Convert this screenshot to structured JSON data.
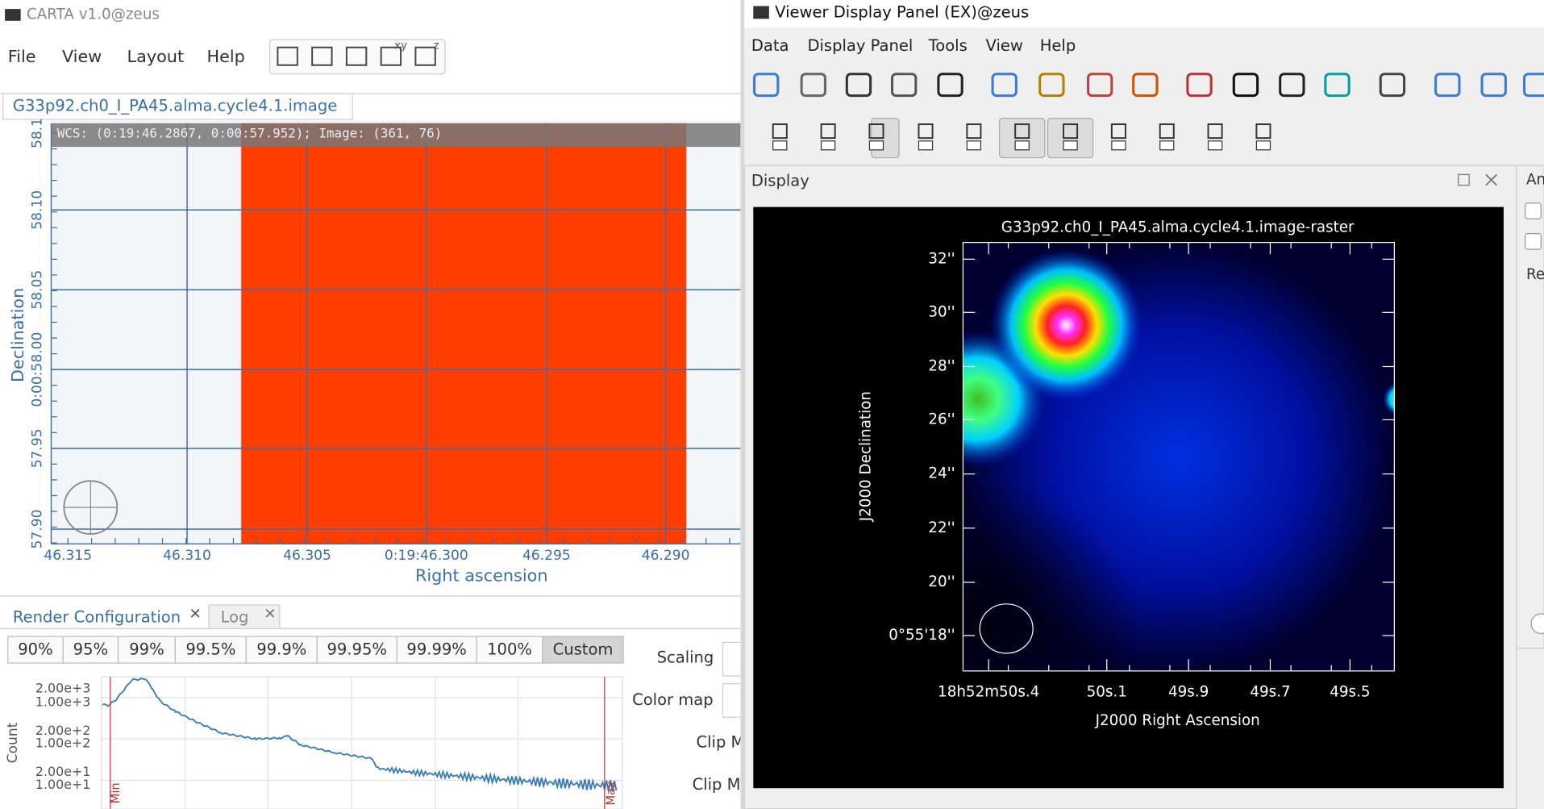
{
  "left_window": {
    "title": "CARTA v1.0@zeus",
    "menu": [
      "File",
      "View",
      "Layout",
      "Help"
    ],
    "toolbar_labels": [
      "xy",
      "z"
    ],
    "tab": "G33p92.ch0_I_PA45.alma.cycle4.1.image",
    "status": "WCS: (0:19:46.2867, 0:00:57.952); Image: (361, 76)",
    "plot": {
      "y_label": "Declination",
      "x_label": "Right ascension",
      "y_ticks": [
        "58.1",
        "58.10",
        "58.05",
        "0:00:58.00",
        "57.95",
        "57.90"
      ],
      "x_ticks": [
        "46.315",
        "46.310",
        "46.305",
        "0:19:46.300",
        "46.295",
        "46.290"
      ]
    }
  },
  "render_panel": {
    "tabs": [
      "Render Configuration",
      "Log"
    ],
    "percentiles": [
      "90%",
      "95%",
      "99%",
      "99.5%",
      "99.9%",
      "99.95%",
      "99.99%",
      "100%",
      "Custom"
    ],
    "fields": [
      "Scaling",
      "Color map",
      "Clip M",
      "Clip M"
    ],
    "histogram": {
      "y_label": "Count",
      "y_ticks": [
        "2.00e+3",
        "1.00e+3",
        "2.00e+2",
        "1.00e+2",
        "2.00e+1",
        "1.00e+1"
      ],
      "markers": [
        "Min",
        "Max"
      ]
    }
  },
  "viewer_window": {
    "title": "Viewer Display Panel (EX)@zeus",
    "menu": [
      "Data",
      "Display Panel",
      "Tools",
      "View",
      "Help"
    ],
    "panel_title": "Display",
    "plot": {
      "title": "G33p92.ch0_I_PA45.alma.cycle4.1.image-raster",
      "y_ticks": [
        "32''",
        "30''",
        "28''",
        "26''",
        "24''",
        "22''",
        "20''",
        "0°55'18''"
      ],
      "x_ticks": [
        "18h52m50s.4",
        "50s.1",
        "49s.9",
        "49s.7",
        "49s.5"
      ],
      "y_label": "J2000 Declination",
      "x_label": "J2000 Right Ascension"
    },
    "side_labels": [
      "An",
      "Re"
    ]
  }
}
